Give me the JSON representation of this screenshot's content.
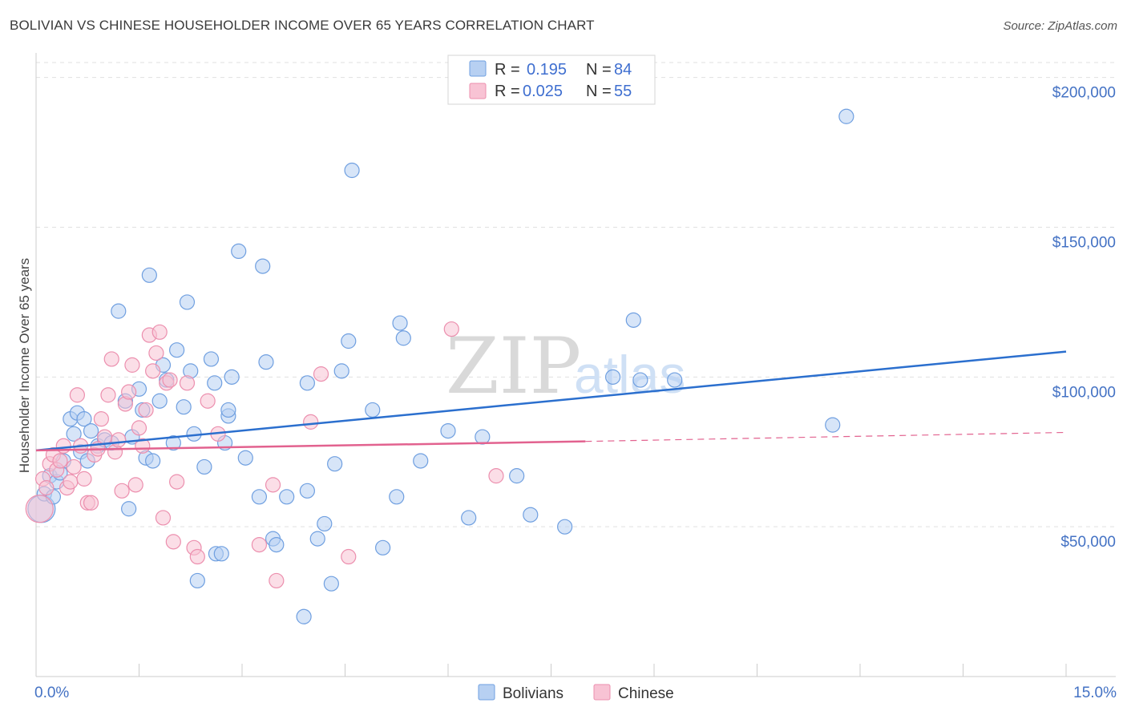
{
  "title": "BOLIVIAN VS CHINESE HOUSEHOLDER INCOME OVER 65 YEARS CORRELATION CHART",
  "source": "Source: ZipAtlas.com",
  "watermark": {
    "zip": "ZIP",
    "atlas": "atlas"
  },
  "colors": {
    "blue_fill": "#b7d0f2",
    "blue_stroke": "#6f9fe0",
    "blue_line": "#2b6fce",
    "pink_fill": "#f8c3d4",
    "pink_stroke": "#ec8fae",
    "pink_line": "#e2628f",
    "tick_text": "#4472c4",
    "grid": "#e0e0e0"
  },
  "legend": {
    "rows": [
      {
        "r_label": "R =",
        "r_value": "0.195",
        "n_label": "N =",
        "n_value": "84"
      },
      {
        "r_label": "R =",
        "r_value": "0.025",
        "n_label": "N =",
        "n_value": "55"
      }
    ]
  },
  "bottom_legend": [
    "Bolivians",
    "Chinese"
  ],
  "chart_data": {
    "type": "scatter",
    "title": "BOLIVIAN VS CHINESE HOUSEHOLDER INCOME OVER 65 YEARS CORRELATION CHART",
    "xlabel": "",
    "ylabel": "Householder Income Over 65 years",
    "xlim": [
      0,
      15
    ],
    "ylim": [
      0,
      205000
    ],
    "x_tick_labels": [
      "0.0%",
      "15.0%"
    ],
    "y_ticks": [
      50000,
      100000,
      150000,
      200000
    ],
    "y_tick_labels": [
      "$50,000",
      "$100,000",
      "$150,000",
      "$200,000"
    ],
    "grid": true,
    "legend_position": "top-center",
    "series": [
      {
        "name": "Bolivians",
        "r": 0.195,
        "n": 84,
        "trend": {
          "x": [
            0,
            15
          ],
          "y": [
            75500,
            108500
          ]
        },
        "points": [
          [
            0.08,
            56000
          ],
          [
            0.12,
            61000
          ],
          [
            0.2,
            67000
          ],
          [
            0.25,
            60000
          ],
          [
            0.3,
            65000
          ],
          [
            0.35,
            68000
          ],
          [
            0.4,
            72000
          ],
          [
            0.5,
            86000
          ],
          [
            0.55,
            81000
          ],
          [
            0.6,
            88000
          ],
          [
            0.65,
            75000
          ],
          [
            0.7,
            86000
          ],
          [
            0.75,
            72000
          ],
          [
            0.8,
            82000
          ],
          [
            0.9,
            77000
          ],
          [
            1.0,
            79000
          ],
          [
            1.1,
            78000
          ],
          [
            1.2,
            122000
          ],
          [
            1.3,
            92000
          ],
          [
            1.35,
            56000
          ],
          [
            1.4,
            80000
          ],
          [
            1.5,
            96000
          ],
          [
            1.55,
            89000
          ],
          [
            1.6,
            73000
          ],
          [
            1.65,
            134000
          ],
          [
            1.7,
            72000
          ],
          [
            1.8,
            92000
          ],
          [
            1.85,
            104000
          ],
          [
            1.9,
            99000
          ],
          [
            2.0,
            78000
          ],
          [
            2.05,
            109000
          ],
          [
            2.15,
            90000
          ],
          [
            2.2,
            125000
          ],
          [
            2.25,
            102000
          ],
          [
            2.3,
            81000
          ],
          [
            2.35,
            32000
          ],
          [
            2.45,
            70000
          ],
          [
            2.55,
            106000
          ],
          [
            2.6,
            98000
          ],
          [
            2.62,
            41000
          ],
          [
            2.7,
            41000
          ],
          [
            2.75,
            78000
          ],
          [
            2.8,
            87000
          ],
          [
            2.8,
            89000
          ],
          [
            2.85,
            100000
          ],
          [
            2.95,
            142000
          ],
          [
            3.05,
            73000
          ],
          [
            3.25,
            60000
          ],
          [
            3.3,
            137000
          ],
          [
            3.35,
            105000
          ],
          [
            3.45,
            46000
          ],
          [
            3.5,
            44000
          ],
          [
            3.65,
            60000
          ],
          [
            3.9,
            20000
          ],
          [
            3.95,
            62000
          ],
          [
            3.95,
            98000
          ],
          [
            4.1,
            46000
          ],
          [
            4.2,
            51000
          ],
          [
            4.3,
            31000
          ],
          [
            4.35,
            71000
          ],
          [
            4.45,
            102000
          ],
          [
            4.55,
            112000
          ],
          [
            4.6,
            169000
          ],
          [
            4.9,
            89000
          ],
          [
            5.05,
            43000
          ],
          [
            5.25,
            60000
          ],
          [
            5.3,
            118000
          ],
          [
            5.35,
            113000
          ],
          [
            5.6,
            72000
          ],
          [
            6.0,
            82000
          ],
          [
            6.3,
            53000
          ],
          [
            6.5,
            80000
          ],
          [
            7.0,
            67000
          ],
          [
            7.2,
            54000
          ],
          [
            7.7,
            50000
          ],
          [
            8.4,
            100000
          ],
          [
            8.7,
            119000
          ],
          [
            8.8,
            99000
          ],
          [
            9.3,
            99000
          ],
          [
            11.6,
            84000
          ],
          [
            11.8,
            187000
          ]
        ]
      },
      {
        "name": "Chinese",
        "r": 0.025,
        "n": 55,
        "trend": {
          "x": [
            0,
            8
          ],
          "y": [
            75500,
            78500
          ]
        },
        "trend_dashed": {
          "x": [
            8,
            15
          ],
          "y": [
            78500,
            81500
          ]
        },
        "points": [
          [
            0.05,
            56000
          ],
          [
            0.1,
            66000
          ],
          [
            0.15,
            63000
          ],
          [
            0.2,
            71000
          ],
          [
            0.25,
            74000
          ],
          [
            0.3,
            69000
          ],
          [
            0.35,
            72000
          ],
          [
            0.4,
            77000
          ],
          [
            0.45,
            63000
          ],
          [
            0.5,
            65000
          ],
          [
            0.55,
            70000
          ],
          [
            0.6,
            94000
          ],
          [
            0.65,
            77000
          ],
          [
            0.7,
            66000
          ],
          [
            0.75,
            58000
          ],
          [
            0.8,
            58000
          ],
          [
            0.85,
            74000
          ],
          [
            0.9,
            76000
          ],
          [
            0.95,
            86000
          ],
          [
            1.0,
            80000
          ],
          [
            1.05,
            94000
          ],
          [
            1.1,
            106000
          ],
          [
            1.15,
            75000
          ],
          [
            1.2,
            79000
          ],
          [
            1.25,
            62000
          ],
          [
            1.3,
            91000
          ],
          [
            1.35,
            95000
          ],
          [
            1.4,
            104000
          ],
          [
            1.45,
            64000
          ],
          [
            1.5,
            83000
          ],
          [
            1.55,
            77000
          ],
          [
            1.6,
            89000
          ],
          [
            1.65,
            114000
          ],
          [
            1.7,
            102000
          ],
          [
            1.75,
            108000
          ],
          [
            1.8,
            115000
          ],
          [
            1.85,
            53000
          ],
          [
            1.9,
            98000
          ],
          [
            1.95,
            99000
          ],
          [
            2.0,
            45000
          ],
          [
            2.05,
            65000
          ],
          [
            2.2,
            98000
          ],
          [
            2.3,
            43000
          ],
          [
            2.35,
            40000
          ],
          [
            2.5,
            92000
          ],
          [
            2.65,
            81000
          ],
          [
            3.25,
            44000
          ],
          [
            3.45,
            64000
          ],
          [
            3.5,
            32000
          ],
          [
            4.0,
            85000
          ],
          [
            4.15,
            101000
          ],
          [
            4.55,
            40000
          ],
          [
            6.05,
            116000
          ],
          [
            6.7,
            67000
          ]
        ]
      }
    ]
  }
}
